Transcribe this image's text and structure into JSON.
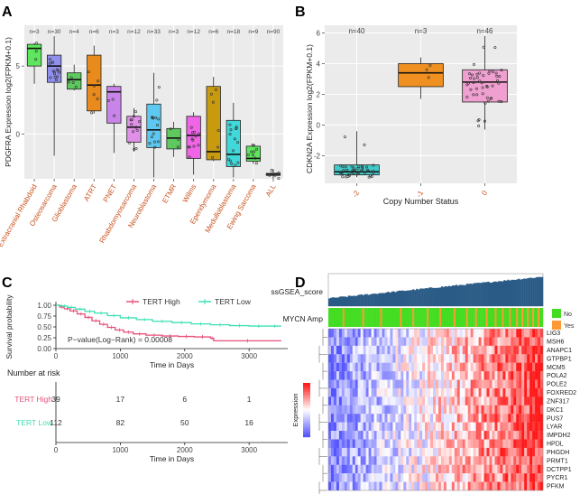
{
  "panels": {
    "a": "A",
    "b": "B",
    "c": "C",
    "d": "D"
  },
  "chart_data": [
    {
      "panel": "A",
      "type": "box",
      "ylabel": "PDGFRA Expression log2(FPKM+0.1)",
      "ylim": [
        -3.3,
        8.0
      ],
      "yticks": [
        0,
        5
      ],
      "categories": [
        "Extracranial Rhabdoid",
        "Osteosarcoma",
        "Glioblastoma",
        "ATRT",
        "PNET",
        "Rhabdomyosarcoma",
        "Neuroblastoma",
        "ETMR",
        "Wilms",
        "Ependymoma",
        "Medulloblastoma",
        "Ewing Sarcoma",
        "ALL"
      ],
      "counts": [
        "n=3",
        "n=30",
        "n=4",
        "n=6",
        "n=3",
        "n=12",
        "n=33",
        "n=3",
        "n=12",
        "n=6",
        "n=18",
        "n=9",
        "n=90"
      ],
      "colors": [
        "#5ee65e",
        "#8f8fee",
        "#5ec95e",
        "#e88a1c",
        "#c884e8",
        "#e090e8",
        "#5ec9f0",
        "#5ec95e",
        "#f064e8",
        "#c89a10",
        "#40d8d8",
        "#5ee65e",
        "#d0d0d0"
      ],
      "boxes": [
        {
          "min": 3.7,
          "q1": 5.0,
          "median": 6.3,
          "q3": 6.6,
          "max": 6.7
        },
        {
          "min": -1.6,
          "q1": 3.8,
          "median": 5.0,
          "q3": 5.8,
          "max": 7.2
        },
        {
          "min": 3.2,
          "q1": 3.3,
          "median": 4.0,
          "q3": 4.5,
          "max": 5.1
        },
        {
          "min": 1.5,
          "q1": 1.7,
          "median": 3.6,
          "q3": 5.8,
          "max": 6.5
        },
        {
          "min": -1.4,
          "q1": 0.8,
          "median": 3.1,
          "q3": 3.5,
          "max": 3.7
        },
        {
          "min": -1.3,
          "q1": -0.6,
          "median": 0.5,
          "q3": 1.3,
          "max": 1.9
        },
        {
          "min": -3.2,
          "q1": -1.0,
          "median": 0.3,
          "q3": 2.2,
          "max": 4.5
        },
        {
          "min": -1.7,
          "q1": -1.1,
          "median": -0.3,
          "q3": 0.4,
          "max": 0.9
        },
        {
          "min": -3.0,
          "q1": -1.8,
          "median": -0.1,
          "q3": 1.3,
          "max": 1.6
        },
        {
          "min": -2.0,
          "q1": -1.9,
          "median": -1.3,
          "q3": 3.5,
          "max": 4.2
        },
        {
          "min": -3.2,
          "q1": -2.4,
          "median": -1.5,
          "q3": 1.0,
          "max": 2.3
        },
        {
          "min": -2.2,
          "q1": -2.0,
          "median": -1.8,
          "q3": -0.9,
          "max": -0.8
        },
        {
          "min": -3.3,
          "q1": -3.05,
          "median": -2.95,
          "q3": -2.9,
          "max": -2.6
        }
      ]
    },
    {
      "panel": "B",
      "type": "box",
      "ylabel": "CDKN2A Expression log2(FPKM+0.1)",
      "xlabel": "Copy Number Status",
      "ylim": [
        -3.8,
        6.5
      ],
      "yticks": [
        -2,
        0,
        2,
        4,
        6
      ],
      "categories": [
        "-2",
        "-1",
        "0"
      ],
      "counts": [
        "n=40",
        "n=3",
        "n=46"
      ],
      "colors": [
        "#40c8c8",
        "#f09020",
        "#f0a0d0"
      ],
      "boxes": [
        {
          "min": -3.4,
          "q1": -3.25,
          "median": -3.05,
          "q3": -2.6,
          "max": -0.4
        },
        {
          "min": 1.7,
          "q1": 2.5,
          "median": 3.4,
          "q3": 4.0,
          "max": 4.4
        },
        {
          "min": -0.3,
          "q1": 1.5,
          "median": 2.8,
          "q3": 3.6,
          "max": 5.8
        }
      ]
    },
    {
      "panel": "C",
      "type": "line",
      "ylabel": "Survival probability",
      "xlabel": "Time in Days",
      "xlim": [
        0,
        3600
      ],
      "ylim": [
        0,
        1
      ],
      "xticks": [
        0,
        1000,
        2000,
        3000
      ],
      "yticks": [
        0,
        0.25,
        0.5,
        0.75,
        1.0
      ],
      "yticklabels": [
        "0.00",
        "0.25",
        "0.50",
        "0.75",
        "1.00"
      ],
      "annotation": "P−value(Log−Rank) = 0.00008",
      "series": [
        {
          "name": "TERT High",
          "color": "#e8507a",
          "x": [
            0,
            60,
            130,
            220,
            330,
            450,
            560,
            680,
            800,
            920,
            1050,
            1200,
            1400,
            1650,
            1900,
            2150,
            2400,
            2450,
            3500
          ],
          "y": [
            1.0,
            0.96,
            0.92,
            0.87,
            0.8,
            0.72,
            0.64,
            0.56,
            0.49,
            0.43,
            0.38,
            0.34,
            0.31,
            0.29,
            0.28,
            0.27,
            0.24,
            0.18,
            0.18
          ]
        },
        {
          "name": "TERT Low",
          "color": "#3ee0b4",
          "x": [
            0,
            80,
            180,
            300,
            450,
            600,
            800,
            1000,
            1250,
            1500,
            1800,
            2100,
            2400,
            2700,
            3000,
            3300,
            3500
          ],
          "y": [
            1.0,
            0.98,
            0.95,
            0.91,
            0.86,
            0.82,
            0.76,
            0.71,
            0.67,
            0.63,
            0.6,
            0.57,
            0.55,
            0.53,
            0.52,
            0.52,
            0.52
          ]
        }
      ],
      "risk_table": {
        "title": "Number at risk",
        "xlabel": "Time in Days",
        "rows": [
          {
            "name": "TERT High",
            "color": "#e8507a",
            "values": [
              "39",
              "17",
              "6",
              "1"
            ]
          },
          {
            "name": "TERT Low",
            "color": "#3ee0b4",
            "values": [
              "112",
              "82",
              "50",
              "16"
            ]
          }
        ]
      }
    },
    {
      "panel": "D",
      "type": "heatmap",
      "top_annotation": "ssGSEA_score",
      "row_annotation": "MYCN Amp",
      "legend_items": [
        {
          "label": "No",
          "color": "#44dd22"
        },
        {
          "label": "Yes",
          "color": "#ff9933"
        }
      ],
      "colorbar_label": "Expression",
      "genes": [
        "LIG3",
        "MSH6",
        "ANAPC1",
        "GTPBP1",
        "MCM5",
        "POLA2",
        "POLE2",
        "FOXRED2",
        "ZNF317",
        "DKC1",
        "PUS7",
        "LYAR",
        "IMPDH2",
        "HPDL",
        "PHGDH",
        "PRMT1",
        "DCTPP1",
        "PYCR1",
        "PFKM"
      ]
    }
  ]
}
